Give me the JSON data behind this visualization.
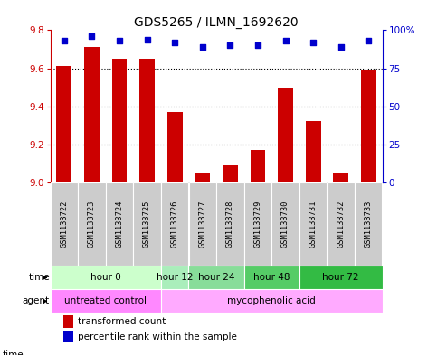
{
  "title": "GDS5265 / ILMN_1692620",
  "samples": [
    "GSM1133722",
    "GSM1133723",
    "GSM1133724",
    "GSM1133725",
    "GSM1133726",
    "GSM1133727",
    "GSM1133728",
    "GSM1133729",
    "GSM1133730",
    "GSM1133731",
    "GSM1133732",
    "GSM1133733"
  ],
  "transformed_count": [
    9.61,
    9.71,
    9.65,
    9.65,
    9.37,
    9.05,
    9.09,
    9.17,
    9.5,
    9.32,
    9.05,
    9.59
  ],
  "percentile_rank": [
    93,
    96,
    93,
    94,
    92,
    89,
    90,
    90,
    93,
    92,
    89,
    93
  ],
  "ylim_left": [
    9.0,
    9.8
  ],
  "ylim_right": [
    0,
    100
  ],
  "yticks_left": [
    9.0,
    9.2,
    9.4,
    9.6,
    9.8
  ],
  "yticks_right": [
    0,
    25,
    50,
    75,
    100
  ],
  "ytick_labels_right": [
    "0",
    "25",
    "50",
    "75",
    "100%"
  ],
  "bar_color": "#cc0000",
  "dot_color": "#0000cc",
  "time_groups": [
    {
      "label": "hour 0",
      "start": 0,
      "end": 4,
      "color": "#ccffcc"
    },
    {
      "label": "hour 12",
      "start": 4,
      "end": 5,
      "color": "#aaeebb"
    },
    {
      "label": "hour 24",
      "start": 5,
      "end": 7,
      "color": "#88dd99"
    },
    {
      "label": "hour 48",
      "start": 7,
      "end": 9,
      "color": "#55cc66"
    },
    {
      "label": "hour 72",
      "start": 9,
      "end": 12,
      "color": "#33bb44"
    }
  ],
  "agent_groups": [
    {
      "label": "untreated control",
      "start": 0,
      "end": 4,
      "color": "#ff88ff"
    },
    {
      "label": "mycophenolic acid",
      "start": 4,
      "end": 12,
      "color": "#ffaaff"
    }
  ],
  "legend_red": "transformed count",
  "legend_blue": "percentile rank within the sample",
  "sample_box_color": "#cccccc",
  "title_fontsize": 10,
  "tick_fontsize": 7.5,
  "label_fontsize": 8,
  "bar_width": 0.55,
  "dot_size": 22
}
